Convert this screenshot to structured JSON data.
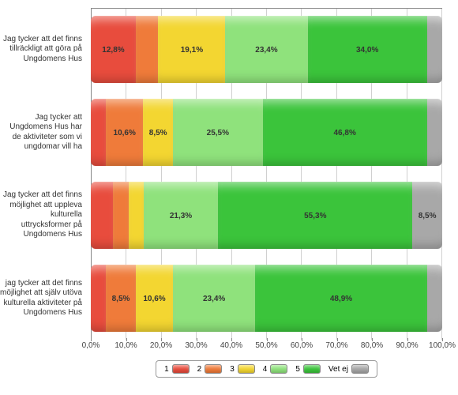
{
  "chart": {
    "type": "stacked-bar-horizontal",
    "background_color": "#ffffff",
    "grid_color": "#d0d0d0",
    "label_fontsize": 10,
    "value_fontsize": 10,
    "xlim": [
      0,
      100
    ],
    "xtick_step": 10,
    "x_axis_format": "percent_comma",
    "categories": [
      {
        "key": "1",
        "color": "#e84c3d",
        "label": "1"
      },
      {
        "key": "2",
        "color": "#ef7b3a",
        "label": "2"
      },
      {
        "key": "3",
        "color": "#f3d631",
        "label": "3"
      },
      {
        "key": "4",
        "color": "#8fe27c",
        "label": "4"
      },
      {
        "key": "5",
        "color": "#3bc43b",
        "label": "5"
      },
      {
        "key": "vet_ej",
        "color": "#a8a8a8",
        "label": "Vet ej"
      }
    ],
    "rows": [
      {
        "label": "Jag tycker att det finns tillräckligt att göra på Ungdomens Hus",
        "values": {
          "1": 12.8,
          "2": 6.4,
          "3": 19.1,
          "4": 23.4,
          "5": 34.0,
          "vet_ej": 4.3
        },
        "show": {
          "1": "12,8%",
          "3": "19,1%",
          "4": "23,4%",
          "5": "34,0%"
        }
      },
      {
        "label": "Jag tycker att Ungdomens Hus har de aktiviteter som vi ungdomar vill ha",
        "values": {
          "1": 4.3,
          "2": 10.6,
          "3": 8.5,
          "4": 25.5,
          "5": 46.8,
          "vet_ej": 4.3
        },
        "show": {
          "2": "10,6%",
          "3": "8,5%",
          "4": "25,5%",
          "5": "46,8%"
        }
      },
      {
        "label": "Jag tycker att det finns möjlighet att uppleva kulturella uttrycksformer på Ungdomens Hus",
        "values": {
          "1": 6.4,
          "2": 4.3,
          "3": 4.3,
          "4": 21.3,
          "5": 55.3,
          "vet_ej": 8.5
        },
        "show": {
          "4": "21,3%",
          "5": "55,3%",
          "vet_ej": "8,5%"
        }
      },
      {
        "label": "jag tycker att det finns möjlighet att själv utöva kulturella aktiviteter på Ungdomens Hus",
        "values": {
          "1": 4.3,
          "2": 8.5,
          "3": 10.6,
          "4": 23.4,
          "5": 48.9,
          "vet_ej": 4.3
        },
        "show": {
          "2": "8,5%",
          "3": "10,6%",
          "4": "23,4%",
          "5": "48,9%"
        }
      }
    ],
    "x_ticks": [
      "0,0%",
      "10,0%",
      "20,0%",
      "30,0%",
      "40,0%",
      "50,0%",
      "60,0%",
      "70,0%",
      "80,0%",
      "90,0%",
      "100,0%"
    ]
  }
}
